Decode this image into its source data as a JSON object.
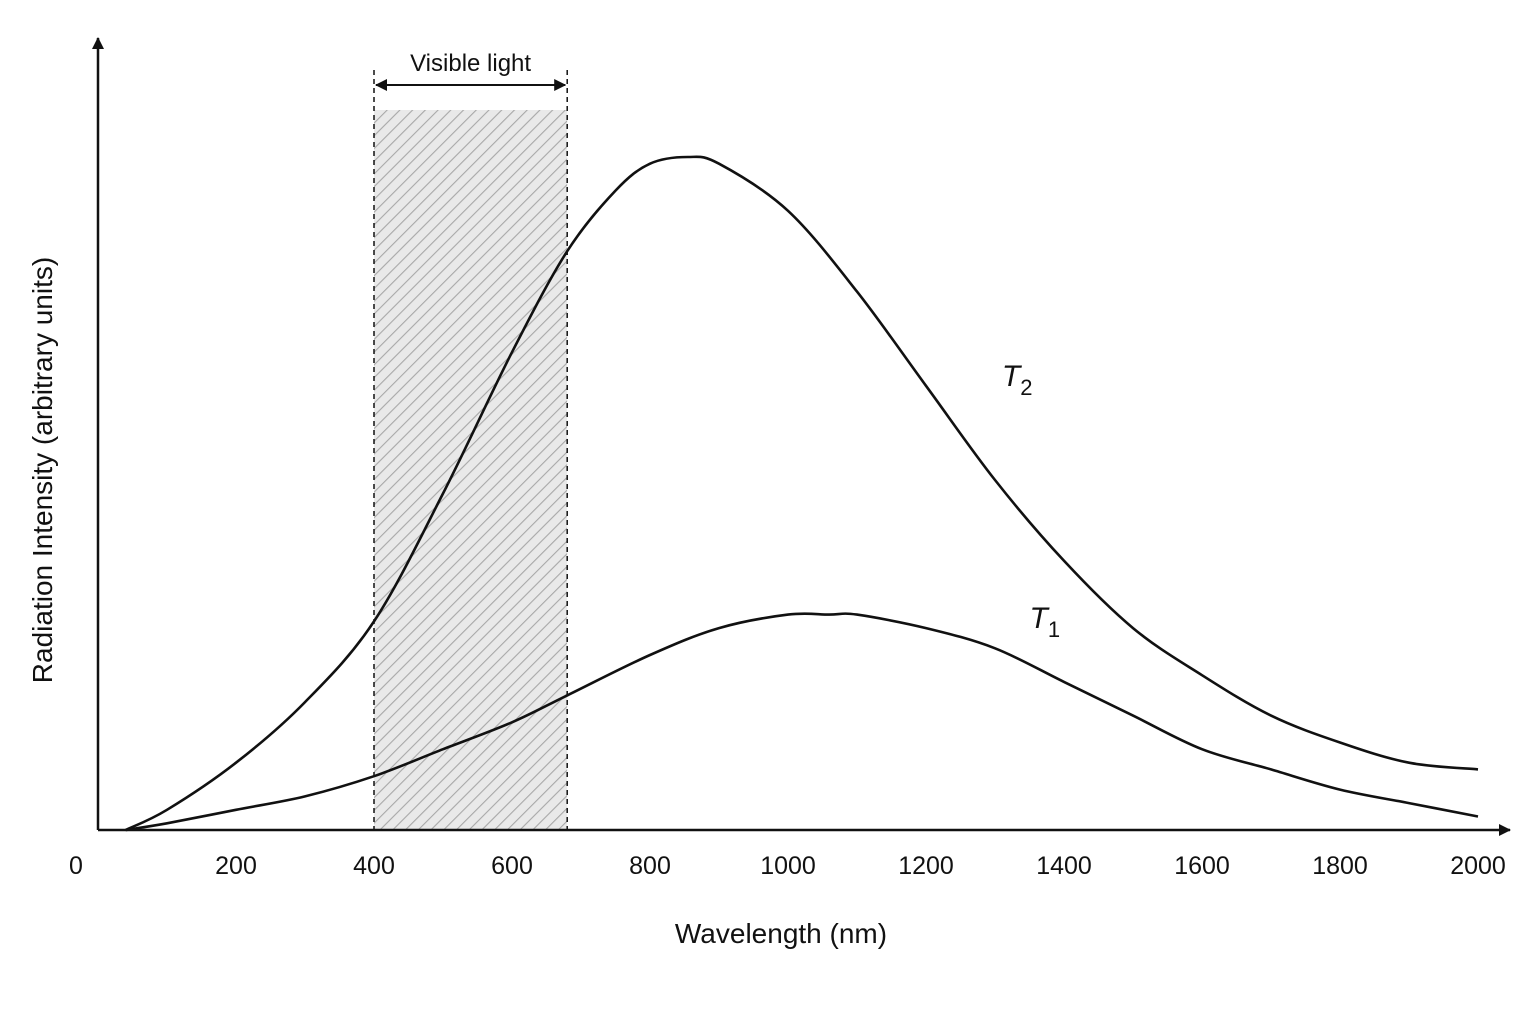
{
  "chart_data": {
    "type": "line",
    "title": "",
    "xlabel": "Wavelength (nm)",
    "ylabel": "Radiation Intensity (arbitrary units)",
    "xlim": [
      0,
      2000
    ],
    "ylim": [
      0,
      1
    ],
    "origin_label": "0",
    "x_ticks": [
      200,
      400,
      600,
      800,
      1000,
      1200,
      1400,
      1600,
      1800,
      2000
    ],
    "grid": false,
    "legend": "none",
    "band": {
      "label": "Visible light",
      "x_start": 400,
      "x_end": 680
    },
    "series": [
      {
        "name": "T2",
        "label_main": "T",
        "label_sub": "2",
        "label_at": [
          1310,
          0.66
        ],
        "points": [
          [
            40,
            0
          ],
          [
            100,
            0.03
          ],
          [
            200,
            0.1
          ],
          [
            300,
            0.19
          ],
          [
            400,
            0.31
          ],
          [
            500,
            0.5
          ],
          [
            600,
            0.71
          ],
          [
            680,
            0.86
          ],
          [
            750,
            0.95
          ],
          [
            800,
            0.99
          ],
          [
            855,
            1.0
          ],
          [
            900,
            0.99
          ],
          [
            1000,
            0.92
          ],
          [
            1100,
            0.8
          ],
          [
            1200,
            0.66
          ],
          [
            1300,
            0.52
          ],
          [
            1400,
            0.4
          ],
          [
            1500,
            0.3
          ],
          [
            1600,
            0.23
          ],
          [
            1700,
            0.17
          ],
          [
            1800,
            0.13
          ],
          [
            1900,
            0.1
          ],
          [
            2000,
            0.09
          ]
        ]
      },
      {
        "name": "T1",
        "label_main": "T",
        "label_sub": "1",
        "label_at": [
          1350,
          0.3
        ],
        "points": [
          [
            40,
            0
          ],
          [
            100,
            0.01
          ],
          [
            200,
            0.03
          ],
          [
            300,
            0.05
          ],
          [
            400,
            0.08
          ],
          [
            500,
            0.12
          ],
          [
            600,
            0.16
          ],
          [
            680,
            0.2
          ],
          [
            800,
            0.26
          ],
          [
            900,
            0.3
          ],
          [
            1000,
            0.32
          ],
          [
            1060,
            0.32
          ],
          [
            1100,
            0.32
          ],
          [
            1200,
            0.3
          ],
          [
            1300,
            0.27
          ],
          [
            1400,
            0.22
          ],
          [
            1500,
            0.17
          ],
          [
            1600,
            0.12
          ],
          [
            1700,
            0.09
          ],
          [
            1800,
            0.06
          ],
          [
            1900,
            0.04
          ],
          [
            2000,
            0.02
          ]
        ]
      }
    ]
  }
}
